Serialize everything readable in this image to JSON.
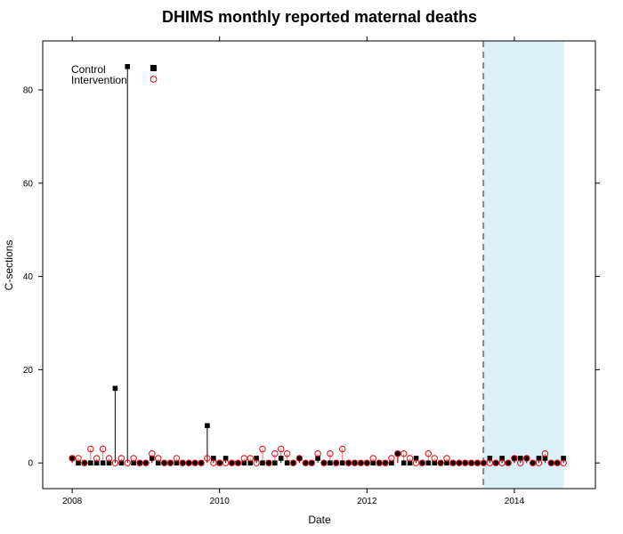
{
  "chart_data": {
    "type": "scatter",
    "title": "DHIMS monthly reported maternal deaths",
    "xlabel": "Date",
    "ylabel": "C-sections",
    "xlim": [
      2007.6,
      2015.1
    ],
    "ylim": [
      -5.5,
      90.5
    ],
    "x_ticks": [
      2008,
      2010,
      2012,
      2014
    ],
    "x_tick_labels": [
      "2008",
      "2010",
      "2012",
      "2014"
    ],
    "y_ticks": [
      0,
      20,
      40,
      60,
      80
    ],
    "y_tick_labels": [
      "0",
      "20",
      "40",
      "60",
      "80"
    ],
    "intervention_line_x": 2013.58,
    "shaded_region": [
      2013.58,
      2014.67
    ],
    "legend_position": "top-left",
    "colors": {
      "Control": "#000000",
      "Intervention": "#e8000b",
      "shade": "#dcf0f8",
      "vline": "#888888"
    },
    "series": [
      {
        "name": "Control",
        "marker": "filled-square",
        "x": [
          2008.0,
          2008.083,
          2008.167,
          2008.25,
          2008.333,
          2008.417,
          2008.5,
          2008.583,
          2008.667,
          2008.75,
          2008.833,
          2008.917,
          2009.0,
          2009.083,
          2009.167,
          2009.25,
          2009.333,
          2009.417,
          2009.5,
          2009.583,
          2009.667,
          2009.75,
          2009.833,
          2009.917,
          2010.0,
          2010.083,
          2010.167,
          2010.25,
          2010.333,
          2010.417,
          2010.5,
          2010.583,
          2010.667,
          2010.75,
          2010.833,
          2010.917,
          2011.0,
          2011.083,
          2011.167,
          2011.25,
          2011.333,
          2011.417,
          2011.5,
          2011.583,
          2011.667,
          2011.75,
          2011.833,
          2011.917,
          2012.0,
          2012.083,
          2012.167,
          2012.25,
          2012.333,
          2012.417,
          2012.5,
          2012.583,
          2012.667,
          2012.75,
          2012.833,
          2012.917,
          2013.0,
          2013.083,
          2013.167,
          2013.25,
          2013.333,
          2013.417,
          2013.5,
          2013.583,
          2013.667,
          2013.75,
          2013.833,
          2013.917,
          2014.0,
          2014.083,
          2014.167,
          2014.25,
          2014.333,
          2014.417,
          2014.5,
          2014.583,
          2014.667
        ],
        "values": [
          1,
          0,
          0,
          0,
          0,
          0,
          0,
          16,
          0,
          85,
          0,
          0,
          0,
          1,
          0,
          0,
          0,
          0,
          0,
          0,
          0,
          0,
          8,
          1,
          0,
          1,
          0,
          0,
          0,
          0,
          1,
          0,
          0,
          0,
          1,
          0,
          0,
          1,
          0,
          0,
          1,
          0,
          0,
          0,
          0,
          0,
          0,
          0,
          0,
          0,
          0,
          0,
          0,
          2,
          0,
          0,
          1,
          0,
          0,
          0,
          0,
          0,
          0,
          0,
          0,
          0,
          0,
          0,
          1,
          0,
          1,
          0,
          1,
          1,
          1,
          0,
          1,
          1,
          0,
          0,
          1
        ]
      },
      {
        "name": "Intervention",
        "marker": "open-circle",
        "x": [
          2008.0,
          2008.083,
          2008.167,
          2008.25,
          2008.333,
          2008.417,
          2008.5,
          2008.583,
          2008.667,
          2008.75,
          2008.833,
          2008.917,
          2009.0,
          2009.083,
          2009.167,
          2009.25,
          2009.333,
          2009.417,
          2009.5,
          2009.583,
          2009.667,
          2009.75,
          2009.833,
          2009.917,
          2010.0,
          2010.083,
          2010.167,
          2010.25,
          2010.333,
          2010.417,
          2010.5,
          2010.583,
          2010.667,
          2010.75,
          2010.833,
          2010.917,
          2011.0,
          2011.083,
          2011.167,
          2011.25,
          2011.333,
          2011.417,
          2011.5,
          2011.583,
          2011.667,
          2011.75,
          2011.833,
          2011.917,
          2012.0,
          2012.083,
          2012.167,
          2012.25,
          2012.333,
          2012.417,
          2012.5,
          2012.583,
          2012.667,
          2012.75,
          2012.833,
          2012.917,
          2013.0,
          2013.083,
          2013.167,
          2013.25,
          2013.333,
          2013.417,
          2013.5,
          2013.583,
          2013.667,
          2013.75,
          2013.833,
          2013.917,
          2014.0,
          2014.083,
          2014.167,
          2014.25,
          2014.333,
          2014.417,
          2014.5,
          2014.583,
          2014.667
        ],
        "values": [
          1,
          1,
          0,
          3,
          1,
          3,
          1,
          0,
          1,
          0,
          1,
          0,
          0,
          2,
          1,
          0,
          0,
          1,
          0,
          0,
          0,
          0,
          1,
          0,
          0,
          0,
          0,
          0,
          1,
          1,
          0,
          3,
          0,
          2,
          3,
          2,
          0,
          1,
          0,
          0,
          2,
          0,
          2,
          0,
          3,
          0,
          0,
          0,
          0,
          1,
          0,
          0,
          1,
          2,
          2,
          1,
          0,
          0,
          2,
          1,
          0,
          1,
          0,
          0,
          0,
          0,
          0,
          0,
          0,
          0,
          0,
          0,
          1,
          0,
          1,
          0,
          0,
          2,
          0,
          0,
          0
        ]
      }
    ]
  }
}
